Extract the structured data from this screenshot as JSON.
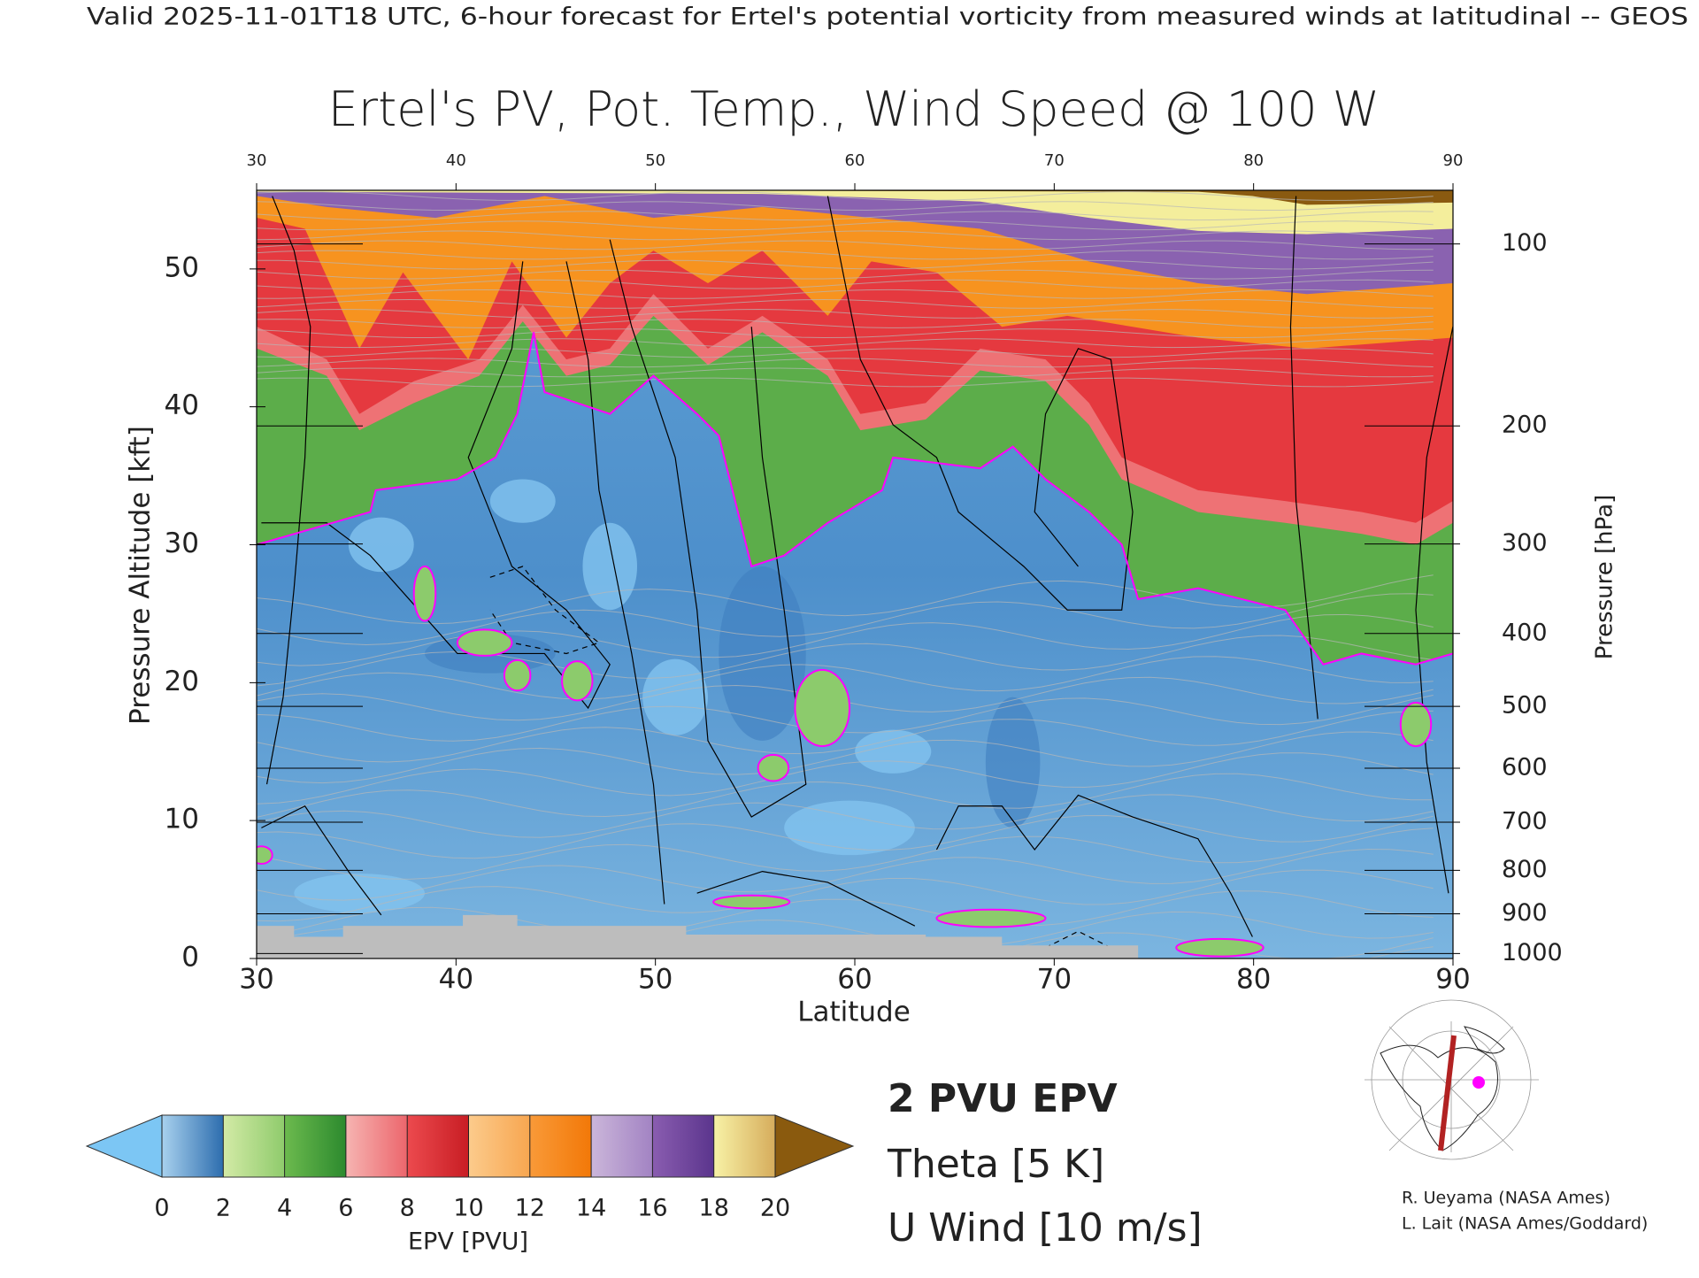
{
  "header": {
    "title": "Valid 2025-11-01T18 UTC, 6-hour forecast for Ertel's potential vorticity from measured winds at latitudinal -- GEOS"
  },
  "chart_data": {
    "type": "contour",
    "title": "Ertel's PV, Pot. Temp., Wind Speed @ 100 W",
    "xlabel": "Latitude",
    "ylabel": "Pressure Altitude [kft]",
    "y2label": "Pressure [hPa]",
    "xlim": [
      30,
      90
    ],
    "xticks": [
      30,
      40,
      50,
      60,
      70,
      80,
      90
    ],
    "ylim": [
      0,
      55.7
    ],
    "yticks": [
      0,
      10,
      20,
      30,
      40,
      50
    ],
    "y2ticks": [
      100,
      200,
      300,
      400,
      500,
      600,
      700,
      800,
      900,
      1000
    ],
    "colorbar": {
      "label": "EPV [PVU]",
      "ticks": [
        0,
        2,
        4,
        6,
        8,
        10,
        12,
        14,
        16,
        18,
        20
      ],
      "colors": [
        [
          "#a8d1ee",
          "#2d6dae"
        ],
        [
          "#d3eaa6",
          "#8fcb6c"
        ],
        [
          "#6cba4e",
          "#2c8a2e"
        ],
        [
          "#f6b4b2",
          "#ec666c"
        ],
        [
          "#ec4a4e",
          "#c81d24"
        ],
        [
          "#fccb8c",
          "#f7a650"
        ],
        [
          "#f99a38",
          "#f27808"
        ],
        [
          "#cbb6da",
          "#a283c3"
        ],
        [
          "#8a5db0",
          "#5b358d"
        ],
        [
          "#f8f2a6",
          "#d6ac5c"
        ]
      ],
      "under_color": "#7cc6f4",
      "over_color": "#8a5a0e"
    },
    "legend": [
      {
        "name": "2 PVU EPV",
        "color": "#ff00ff"
      },
      {
        "name": "Theta [5 K]",
        "color": "#b0b0b0"
      },
      {
        "name": "U Wind [10 m/s]",
        "color": "#000000"
      }
    ]
  },
  "credits": [
    "R. Ueyama (NASA Ames)",
    "L. Lait (NASA Ames/Goddard)"
  ]
}
